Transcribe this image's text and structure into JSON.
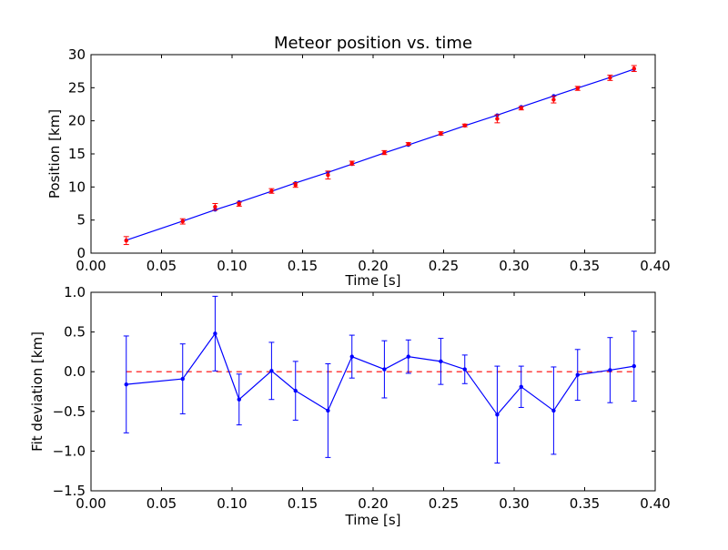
{
  "chart_data": [
    {
      "type": "scatter",
      "title": "Meteor position vs. time",
      "xlabel": "Time [s]",
      "ylabel": "Position [km]",
      "xlim": [
        0.0,
        0.4
      ],
      "ylim": [
        0,
        30
      ],
      "xticks": [
        "0.00",
        "0.05",
        "0.10",
        "0.15",
        "0.20",
        "0.25",
        "0.30",
        "0.35",
        "0.40"
      ],
      "yticks": [
        "0",
        "5",
        "10",
        "15",
        "20",
        "25",
        "30"
      ],
      "grid": false,
      "colors": {
        "points": "#ff0000",
        "errorbars": "#ff0000",
        "fit": "#0000ff"
      },
      "points": [
        {
          "x": 0.025,
          "y": 1.9,
          "err": 0.6
        },
        {
          "x": 0.065,
          "y": 4.8,
          "err": 0.4
        },
        {
          "x": 0.088,
          "y": 7.0,
          "err": 0.5
        },
        {
          "x": 0.105,
          "y": 7.4,
          "err": 0.3
        },
        {
          "x": 0.128,
          "y": 9.4,
          "err": 0.35
        },
        {
          "x": 0.145,
          "y": 10.3,
          "err": 0.35
        },
        {
          "x": 0.168,
          "y": 11.8,
          "err": 0.6
        },
        {
          "x": 0.185,
          "y": 13.6,
          "err": 0.3
        },
        {
          "x": 0.208,
          "y": 15.2,
          "err": 0.3
        },
        {
          "x": 0.225,
          "y": 16.5,
          "err": 0.2
        },
        {
          "x": 0.248,
          "y": 18.1,
          "err": 0.25
        },
        {
          "x": 0.265,
          "y": 19.3,
          "err": 0.2
        },
        {
          "x": 0.288,
          "y": 20.3,
          "err": 0.6
        },
        {
          "x": 0.305,
          "y": 21.9,
          "err": 0.25
        },
        {
          "x": 0.328,
          "y": 23.2,
          "err": 0.5
        },
        {
          "x": 0.345,
          "y": 24.9,
          "err": 0.3
        },
        {
          "x": 0.368,
          "y": 26.5,
          "err": 0.4
        },
        {
          "x": 0.385,
          "y": 27.9,
          "err": 0.45
        }
      ],
      "fit": [
        {
          "x": 0.025,
          "y": 1.95
        },
        {
          "x": 0.065,
          "y": 4.85
        },
        {
          "x": 0.088,
          "y": 6.55
        },
        {
          "x": 0.105,
          "y": 7.7
        },
        {
          "x": 0.128,
          "y": 9.35
        },
        {
          "x": 0.145,
          "y": 10.6
        },
        {
          "x": 0.168,
          "y": 12.2
        },
        {
          "x": 0.185,
          "y": 13.45
        },
        {
          "x": 0.208,
          "y": 15.15
        },
        {
          "x": 0.225,
          "y": 16.35
        },
        {
          "x": 0.248,
          "y": 18.0
        },
        {
          "x": 0.265,
          "y": 19.25
        },
        {
          "x": 0.288,
          "y": 20.85
        },
        {
          "x": 0.305,
          "y": 22.1
        },
        {
          "x": 0.328,
          "y": 23.75
        },
        {
          "x": 0.345,
          "y": 24.95
        },
        {
          "x": 0.368,
          "y": 26.55
        },
        {
          "x": 0.385,
          "y": 27.8
        }
      ]
    },
    {
      "type": "line",
      "title": "",
      "xlabel": "Time [s]",
      "ylabel": "Fit deviation [km]",
      "xlim": [
        0.0,
        0.4
      ],
      "ylim": [
        -1.5,
        1.0
      ],
      "xticks": [
        "0.00",
        "0.05",
        "0.10",
        "0.15",
        "0.20",
        "0.25",
        "0.30",
        "0.35",
        "0.40"
      ],
      "yticks": [
        "−1.5",
        "−1.0",
        "−0.5",
        "0.0",
        "0.5",
        "1.0"
      ],
      "ytick_values": [
        -1.5,
        -1.0,
        -0.5,
        0.0,
        0.5,
        1.0
      ],
      "grid": false,
      "colors": {
        "series": "#0000ff",
        "zero_line": "#ff0000"
      },
      "zero_line": 0.0,
      "points": [
        {
          "x": 0.025,
          "y": -0.16,
          "err": 0.61
        },
        {
          "x": 0.065,
          "y": -0.09,
          "err": 0.44
        },
        {
          "x": 0.088,
          "y": 0.48,
          "err": 0.47
        },
        {
          "x": 0.105,
          "y": -0.35,
          "err": 0.32
        },
        {
          "x": 0.128,
          "y": 0.01,
          "err": 0.36
        },
        {
          "x": 0.145,
          "y": -0.24,
          "err": 0.37
        },
        {
          "x": 0.168,
          "y": -0.49,
          "err": 0.59
        },
        {
          "x": 0.185,
          "y": 0.19,
          "err": 0.27
        },
        {
          "x": 0.208,
          "y": 0.03,
          "err": 0.36
        },
        {
          "x": 0.225,
          "y": 0.19,
          "err": 0.21
        },
        {
          "x": 0.248,
          "y": 0.13,
          "err": 0.29
        },
        {
          "x": 0.265,
          "y": 0.03,
          "err": 0.18
        },
        {
          "x": 0.288,
          "y": -0.54,
          "err": 0.61
        },
        {
          "x": 0.305,
          "y": -0.19,
          "err": 0.26
        },
        {
          "x": 0.328,
          "y": -0.49,
          "err": 0.55
        },
        {
          "x": 0.345,
          "y": -0.04,
          "err": 0.32
        },
        {
          "x": 0.368,
          "y": 0.02,
          "err": 0.41
        },
        {
          "x": 0.385,
          "y": 0.07,
          "err": 0.44
        }
      ]
    }
  ]
}
